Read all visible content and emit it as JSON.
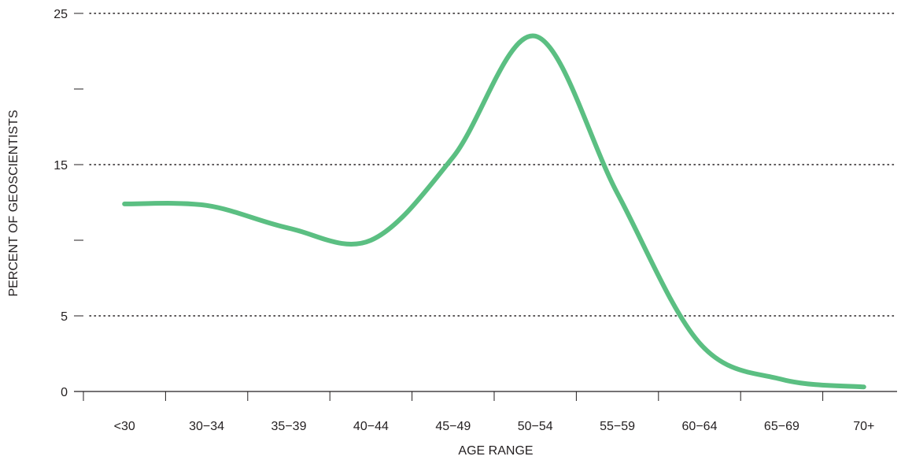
{
  "chart_data": {
    "type": "line",
    "xlabel": "AGE RANGE",
    "ylabel": "PERCENT OF GEOSCIENTISTS",
    "categories": [
      "<30",
      "30−34",
      "35−39",
      "40−44",
      "45−49",
      "50−54",
      "55−59",
      "60−64",
      "65−69",
      "70+"
    ],
    "series": [
      {
        "values": [
          12.4,
          12.3,
          10.8,
          10.0,
          15.5,
          23.5,
          13.1,
          3.2,
          0.8,
          0.3
        ]
      }
    ],
    "ylim": [
      0,
      25
    ],
    "y_tick_labels": [
      "0",
      "5",
      "15",
      "25"
    ],
    "y_label_values": [
      0,
      5,
      15,
      25
    ],
    "y_minor_ticks": [
      10,
      20
    ],
    "y_dotted_gridlines": [
      5,
      15,
      25
    ],
    "colors": {
      "line": "#5bbf82",
      "axis": "#231f20",
      "grid": "#231f20"
    }
  }
}
